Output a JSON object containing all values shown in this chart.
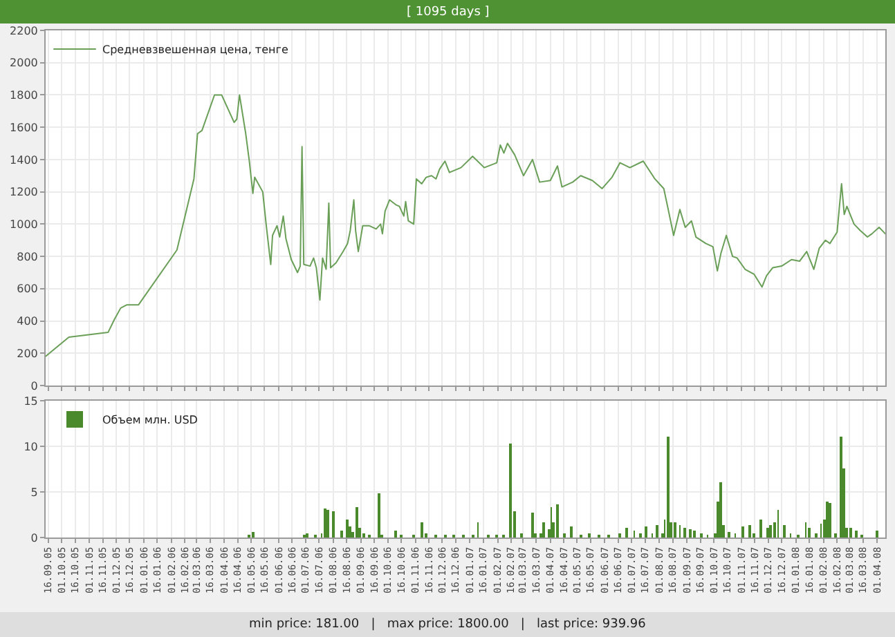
{
  "chart_data": [
    {
      "type": "line",
      "title": "[ 1095 days ]",
      "annotations": [
        "min price: 181.00   |   max price: 1800.00   |   last price: 939.96"
      ],
      "x": [
        "2005-09-13",
        "2005-10-09",
        "2005-11-22",
        "2005-11-29",
        "2005-12-06",
        "2005-12-13",
        "2005-12-26",
        "2006-02-07",
        "2006-02-26",
        "2006-03-02",
        "2006-03-07",
        "2006-03-21",
        "2006-03-29",
        "2006-04-12",
        "2006-04-15",
        "2006-04-18",
        "2006-04-25",
        "2006-04-29",
        "2006-05-03",
        "2006-05-05",
        "2006-05-14",
        "2006-05-18",
        "2006-05-23",
        "2006-05-25",
        "2006-05-30",
        "2006-06-02",
        "2006-06-06",
        "2006-06-09",
        "2006-06-15",
        "2006-06-22",
        "2006-06-25",
        "2006-06-27",
        "2006-06-29",
        "2006-07-06",
        "2006-07-10",
        "2006-07-13",
        "2006-07-17",
        "2006-07-20",
        "2006-07-24",
        "2006-07-27",
        "2006-07-29",
        "2006-08-04",
        "2006-08-12",
        "2006-08-17",
        "2006-08-20",
        "2006-08-24",
        "2006-08-26",
        "2006-08-29",
        "2006-09-03",
        "2006-09-10",
        "2006-09-18",
        "2006-09-23",
        "2006-09-25",
        "2006-09-28",
        "2006-10-03",
        "2006-10-10",
        "2006-10-14",
        "2006-10-19",
        "2006-10-21",
        "2006-10-24",
        "2006-10-30",
        "2006-11-02",
        "2006-11-08",
        "2006-11-13",
        "2006-11-19",
        "2006-11-24",
        "2006-11-28",
        "2006-12-04",
        "2006-12-09",
        "2006-12-22",
        "2007-01-04",
        "2007-01-17",
        "2007-01-31",
        "2007-02-04",
        "2007-02-08",
        "2007-02-12",
        "2007-02-20",
        "2007-03-02",
        "2007-03-12",
        "2007-03-20",
        "2007-04-01",
        "2007-04-09",
        "2007-04-14",
        "2007-04-26",
        "2007-05-05",
        "2007-05-18",
        "2007-05-29",
        "2007-06-09",
        "2007-06-18",
        "2007-06-29",
        "2007-07-14",
        "2007-07-27",
        "2007-08-06",
        "2007-08-11",
        "2007-08-17",
        "2007-08-24",
        "2007-08-30",
        "2007-09-06",
        "2007-09-11",
        "2007-09-22",
        "2007-09-30",
        "2007-10-05",
        "2007-10-09",
        "2007-10-15",
        "2007-10-22",
        "2007-10-27",
        "2007-11-05",
        "2007-11-15",
        "2007-11-24",
        "2007-11-29",
        "2007-12-06",
        "2007-12-16",
        "2007-12-27",
        "2008-01-05",
        "2008-01-13",
        "2008-01-21",
        "2008-01-27",
        "2008-02-03",
        "2008-02-08",
        "2008-02-16",
        "2008-02-21",
        "2008-02-24",
        "2008-02-27",
        "2008-03-06",
        "2008-03-13",
        "2008-03-21",
        "2008-03-26",
        "2008-04-03",
        "2008-04-10"
      ],
      "series": [
        {
          "name": "Средневзвешенная цена, тенге",
          "color": "#6a9f58",
          "values": [
            181,
            300,
            330,
            410,
            480,
            500,
            500,
            840,
            1280,
            1560,
            1580,
            1800,
            1800,
            1630,
            1650,
            1800,
            1560,
            1390,
            1190,
            1290,
            1200,
            990,
            750,
            930,
            990,
            920,
            1050,
            910,
            780,
            700,
            740,
            1480,
            750,
            740,
            790,
            730,
            530,
            790,
            720,
            1130,
            730,
            760,
            830,
            880,
            960,
            1150,
            960,
            830,
            990,
            990,
            970,
            1000,
            940,
            1080,
            1150,
            1120,
            1110,
            1050,
            1140,
            1020,
            1000,
            1280,
            1250,
            1290,
            1300,
            1280,
            1340,
            1390,
            1320,
            1350,
            1420,
            1350,
            1380,
            1490,
            1440,
            1500,
            1430,
            1300,
            1400,
            1260,
            1270,
            1360,
            1230,
            1260,
            1300,
            1270,
            1220,
            1290,
            1380,
            1350,
            1390,
            1280,
            1220,
            1090,
            930,
            1090,
            980,
            1020,
            920,
            880,
            860,
            710,
            820,
            930,
            800,
            790,
            720,
            690,
            610,
            680,
            730,
            740,
            780,
            770,
            830,
            720,
            850,
            900,
            880,
            950,
            1250,
            1060,
            1110,
            1000,
            960,
            920,
            940,
            980,
            940
          ]
        }
      ],
      "xlim": [
        "2005-09-13",
        "2008-04-10"
      ],
      "xticks": [
        {
          "value": "2005-09-16",
          "label": null
        },
        {
          "value": "2005-10-01",
          "label": null
        },
        {
          "value": "2005-10-16",
          "label": null
        },
        {
          "value": "2005-11-01",
          "label": null
        },
        {
          "value": "2005-11-16",
          "label": null
        },
        {
          "value": "2005-12-01",
          "label": null
        },
        {
          "value": "2005-12-16",
          "label": null
        },
        {
          "value": "2006-01-01",
          "label": null
        },
        {
          "value": "2006-01-16",
          "label": null
        },
        {
          "value": "2006-02-01",
          "label": null
        },
        {
          "value": "2006-02-16",
          "label": null
        },
        {
          "value": "2006-03-01",
          "label": null
        },
        {
          "value": "2006-03-16",
          "label": null
        },
        {
          "value": "2006-04-01",
          "label": null
        },
        {
          "value": "2006-04-16",
          "label": null
        },
        {
          "value": "2006-05-01",
          "label": null
        },
        {
          "value": "2006-05-16",
          "label": null
        },
        {
          "value": "2006-06-01",
          "label": null
        },
        {
          "value": "2006-06-16",
          "label": null
        },
        {
          "value": "2006-07-01",
          "label": null
        },
        {
          "value": "2006-07-16",
          "label": null
        },
        {
          "value": "2006-08-01",
          "label": null
        },
        {
          "value": "2006-08-16",
          "label": null
        },
        {
          "value": "2006-09-01",
          "label": null
        },
        {
          "value": "2006-09-16",
          "label": null
        },
        {
          "value": "2006-10-01",
          "label": null
        },
        {
          "value": "2006-10-16",
          "label": null
        },
        {
          "value": "2006-11-01",
          "label": null
        },
        {
          "value": "2006-11-16",
          "label": null
        },
        {
          "value": "2006-12-01",
          "label": null
        },
        {
          "value": "2006-12-16",
          "label": null
        },
        {
          "value": "2007-01-01",
          "label": null
        },
        {
          "value": "2007-01-16",
          "label": null
        },
        {
          "value": "2007-02-01",
          "label": null
        },
        {
          "value": "2007-02-16",
          "label": null
        },
        {
          "value": "2007-03-01",
          "label": null
        },
        {
          "value": "2007-03-16",
          "label": null
        },
        {
          "value": "2007-04-01",
          "label": null
        },
        {
          "value": "2007-04-16",
          "label": null
        },
        {
          "value": "2007-05-01",
          "label": null
        },
        {
          "value": "2007-05-16",
          "label": null
        },
        {
          "value": "2007-06-01",
          "label": null
        },
        {
          "value": "2007-06-16",
          "label": null
        },
        {
          "value": "2007-07-01",
          "label": null
        },
        {
          "value": "2007-07-16",
          "label": null
        },
        {
          "value": "2007-08-01",
          "label": null
        },
        {
          "value": "2007-08-16",
          "label": null
        },
        {
          "value": "2007-09-01",
          "label": null
        },
        {
          "value": "2007-09-16",
          "label": null
        },
        {
          "value": "2007-10-01",
          "label": null
        },
        {
          "value": "2007-10-16",
          "label": null
        },
        {
          "value": "2007-11-01",
          "label": null
        },
        {
          "value": "2007-11-16",
          "label": null
        },
        {
          "value": "2007-12-01",
          "label": null
        },
        {
          "value": "2007-12-16",
          "label": null
        },
        {
          "value": "2008-01-01",
          "label": null
        },
        {
          "value": "2008-01-16",
          "label": null
        },
        {
          "value": "2008-02-01",
          "label": null
        },
        {
          "value": "2008-02-16",
          "label": null
        },
        {
          "value": "2008-03-01",
          "label": null
        },
        {
          "value": "2008-03-16",
          "label": null
        },
        {
          "value": "2008-04-01",
          "label": null
        }
      ],
      "ylim": [
        0,
        2200
      ],
      "yticks": [
        0,
        200,
        400,
        600,
        800,
        1000,
        1200,
        1400,
        1600,
        1800,
        2000,
        2200
      ],
      "grid": true,
      "legend": "top left",
      "tick_labels": "y"
    },
    {
      "type": "bar",
      "x": [
        "2006-04-28",
        "2006-05-03",
        "2006-06-30",
        "2006-07-03",
        "2006-07-12",
        "2006-07-19",
        "2006-07-23",
        "2006-07-26",
        "2006-08-01",
        "2006-08-10",
        "2006-08-16",
        "2006-08-19",
        "2006-08-23",
        "2006-08-28",
        "2006-08-31",
        "2006-09-04",
        "2006-09-10",
        "2006-09-21",
        "2006-09-25",
        "2006-10-10",
        "2006-10-16",
        "2006-10-30",
        "2006-11-08",
        "2006-11-13",
        "2006-11-24",
        "2006-12-04",
        "2006-12-14",
        "2006-12-25",
        "2007-01-04",
        "2007-01-10",
        "2007-01-22",
        "2007-01-31",
        "2007-02-07",
        "2007-02-16",
        "2007-02-20",
        "2007-02-28",
        "2007-03-12",
        "2007-03-15",
        "2007-03-21",
        "2007-03-25",
        "2007-03-30",
        "2007-04-02",
        "2007-04-05",
        "2007-04-09",
        "2007-04-17",
        "2007-04-25",
        "2007-05-05",
        "2007-05-15",
        "2007-05-26",
        "2007-06-05",
        "2007-06-18",
        "2007-06-25",
        "2007-07-04",
        "2007-07-11",
        "2007-07-17",
        "2007-07-24",
        "2007-07-30",
        "2007-08-04",
        "2007-08-07",
        "2007-08-11",
        "2007-08-14",
        "2007-08-19",
        "2007-08-24",
        "2007-08-30",
        "2007-09-04",
        "2007-09-09",
        "2007-09-17",
        "2007-09-24",
        "2007-10-02",
        "2007-10-05",
        "2007-10-09",
        "2007-10-12",
        "2007-10-18",
        "2007-10-25",
        "2007-11-02",
        "2007-11-10",
        "2007-11-15",
        "2007-11-23",
        "2007-12-01",
        "2007-12-04",
        "2007-12-08",
        "2007-12-12",
        "2007-12-19",
        "2007-12-26",
        "2008-01-03",
        "2008-01-12",
        "2008-01-16",
        "2008-01-23",
        "2008-01-29",
        "2008-02-02",
        "2008-02-05",
        "2008-02-08",
        "2008-02-14",
        "2008-02-20",
        "2008-02-23",
        "2008-02-26",
        "2008-03-02",
        "2008-03-08",
        "2008-03-15",
        "2008-04-01"
      ],
      "series": [
        {
          "name": "Объем млн. USD",
          "color": "#4b8a2c",
          "values": [
            0.3,
            0.6,
            0.3,
            0.4,
            0.2,
            0.4,
            3.2,
            3.1,
            2.9,
            0.7,
            1.9,
            1.2,
            0.6,
            3.4,
            1.1,
            0.5,
            0.2,
            4.8,
            0.2,
            0.7,
            0.2,
            0.2,
            1.6,
            0.5,
            0.2,
            0.2,
            0.3,
            0.2,
            0.2,
            1.7,
            0.3,
            0.3,
            0.2,
            10.3,
            2.9,
            0.5,
            2.7,
            0.5,
            0.5,
            1.6,
            0.9,
            3.4,
            1.6,
            3.6,
            0.4,
            1.2,
            0.2,
            0.5,
            0.2,
            0.2,
            0.5,
            1.0,
            0.7,
            0.4,
            1.2,
            0.5,
            1.4,
            0.5,
            2.0,
            11.0,
            1.6,
            1.7,
            1.4,
            1.1,
            0.9,
            0.7,
            0.5,
            0.3,
            0.5,
            4.0,
            6.0,
            1.4,
            0.6,
            0.4,
            1.2,
            1.4,
            0.4,
            2.0,
            1.1,
            1.4,
            1.6,
            3.0,
            1.4,
            0.4,
            0.3,
            1.7,
            1.1,
            0.5,
            1.5,
            1.9,
            3.9,
            3.8,
            0.5,
            11.0,
            7.6,
            1.1,
            1.0,
            0.8,
            0.3,
            0.7
          ]
        }
      ],
      "xlim": [
        "2005-09-13",
        "2008-04-10"
      ],
      "xticks": [
        {
          "value": "2005-09-16",
          "label": "16.09.05"
        },
        {
          "value": "2005-10-01",
          "label": "01.10.05"
        },
        {
          "value": "2005-10-16",
          "label": "16.10.05"
        },
        {
          "value": "2005-11-01",
          "label": "01.11.05"
        },
        {
          "value": "2005-11-16",
          "label": "16.11.05"
        },
        {
          "value": "2005-12-01",
          "label": "01.12.05"
        },
        {
          "value": "2005-12-16",
          "label": "16.12.05"
        },
        {
          "value": "2006-01-01",
          "label": "01.01.06"
        },
        {
          "value": "2006-01-16",
          "label": "16.01.06"
        },
        {
          "value": "2006-02-01",
          "label": "01.02.06"
        },
        {
          "value": "2006-02-16",
          "label": "16.02.06"
        },
        {
          "value": "2006-03-01",
          "label": "01.03.06"
        },
        {
          "value": "2006-03-16",
          "label": "16.03.06"
        },
        {
          "value": "2006-04-01",
          "label": "01.04.06"
        },
        {
          "value": "2006-04-16",
          "label": "16.04.06"
        },
        {
          "value": "2006-05-01",
          "label": "01.05.06"
        },
        {
          "value": "2006-05-16",
          "label": "16.05.06"
        },
        {
          "value": "2006-06-01",
          "label": "01.06.06"
        },
        {
          "value": "2006-06-16",
          "label": "16.06.06"
        },
        {
          "value": "2006-07-01",
          "label": "01.07.06"
        },
        {
          "value": "2006-07-16",
          "label": "16.07.06"
        },
        {
          "value": "2006-08-01",
          "label": "01.08.06"
        },
        {
          "value": "2006-08-16",
          "label": "16.08.06"
        },
        {
          "value": "2006-09-01",
          "label": "01.09.06"
        },
        {
          "value": "2006-09-16",
          "label": "16.09.06"
        },
        {
          "value": "2006-10-01",
          "label": "01.10.06"
        },
        {
          "value": "2006-10-16",
          "label": "16.10.06"
        },
        {
          "value": "2006-11-01",
          "label": "01.11.06"
        },
        {
          "value": "2006-11-16",
          "label": "16.11.06"
        },
        {
          "value": "2006-12-01",
          "label": "01.12.06"
        },
        {
          "value": "2006-12-16",
          "label": "16.12.06"
        },
        {
          "value": "2007-01-01",
          "label": "01.01.07"
        },
        {
          "value": "2007-01-16",
          "label": "16.01.07"
        },
        {
          "value": "2007-02-01",
          "label": "01.02.07"
        },
        {
          "value": "2007-02-16",
          "label": "16.02.07"
        },
        {
          "value": "2007-03-01",
          "label": "01.03.07"
        },
        {
          "value": "2007-03-16",
          "label": "16.03.07"
        },
        {
          "value": "2007-04-01",
          "label": "01.04.07"
        },
        {
          "value": "2007-04-16",
          "label": "16.04.07"
        },
        {
          "value": "2007-05-01",
          "label": "01.05.07"
        },
        {
          "value": "2007-05-16",
          "label": "16.05.07"
        },
        {
          "value": "2007-06-01",
          "label": "01.06.07"
        },
        {
          "value": "2007-06-16",
          "label": "16.06.07"
        },
        {
          "value": "2007-07-01",
          "label": "01.07.07"
        },
        {
          "value": "2007-07-16",
          "label": "16.07.07"
        },
        {
          "value": "2007-08-01",
          "label": "01.08.07"
        },
        {
          "value": "2007-08-16",
          "label": "16.08.07"
        },
        {
          "value": "2007-09-01",
          "label": "01.09.07"
        },
        {
          "value": "2007-09-16",
          "label": "16.09.07"
        },
        {
          "value": "2007-10-01",
          "label": "01.10.07"
        },
        {
          "value": "2007-10-16",
          "label": "16.10.07"
        },
        {
          "value": "2007-11-01",
          "label": "01.11.07"
        },
        {
          "value": "2007-11-16",
          "label": "16.11.07"
        },
        {
          "value": "2007-12-01",
          "label": "01.12.07"
        },
        {
          "value": "2007-12-16",
          "label": "16.12.07"
        },
        {
          "value": "2008-01-01",
          "label": "01.01.08"
        },
        {
          "value": "2008-01-16",
          "label": "16.01.08"
        },
        {
          "value": "2008-02-01",
          "label": "01.02.08"
        },
        {
          "value": "2008-02-16",
          "label": "16.02.08"
        },
        {
          "value": "2008-03-01",
          "label": "01.03.08"
        },
        {
          "value": "2008-03-16",
          "label": "16.03.08"
        },
        {
          "value": "2008-04-01",
          "label": "01.04.08"
        }
      ],
      "ylim": [
        0,
        15
      ],
      "yticks": [
        0,
        5,
        10,
        15
      ],
      "grid": true,
      "legend": "top left"
    }
  ]
}
